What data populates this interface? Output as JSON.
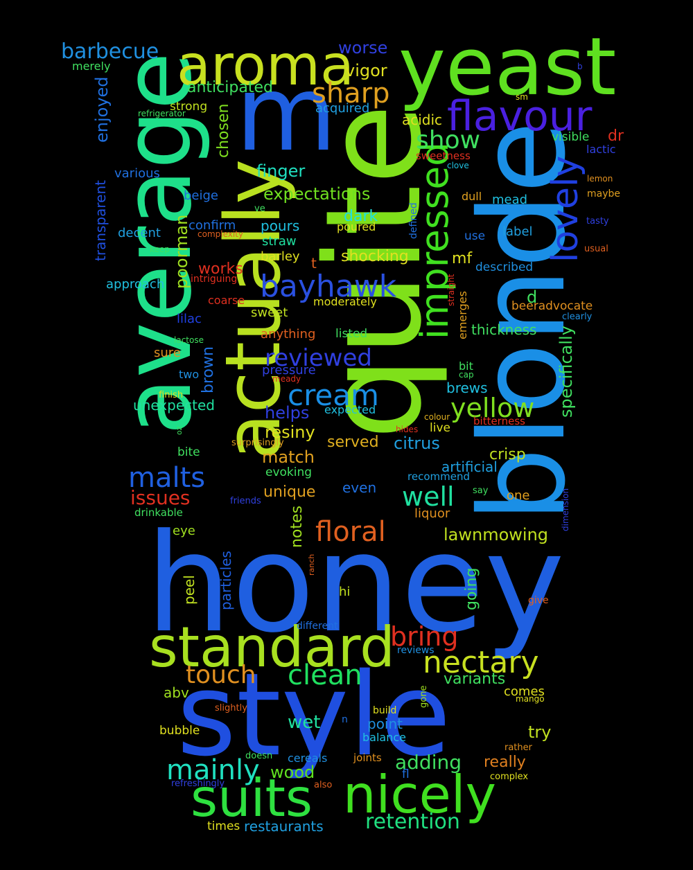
{
  "words": [
    {
      "text": "honey",
      "color": "#1f5fe0",
      "rotate": false
    },
    {
      "text": "quite",
      "color": "#7fe01a",
      "rotate": true
    },
    {
      "text": "blonde",
      "color": "#1a8fe6",
      "rotate": true
    },
    {
      "text": "style",
      "color": "#1f4fe0",
      "rotate": false
    },
    {
      "text": "average",
      "color": "#1ee08a",
      "rotate": true
    },
    {
      "text": "actually",
      "color": "#b8e020",
      "rotate": true
    },
    {
      "text": "yeast",
      "color": "#5fe020",
      "rotate": false
    },
    {
      "text": "m",
      "color": "#1f5fe0",
      "rotate": false
    },
    {
      "text": "aroma",
      "color": "#c8e020",
      "rotate": false
    },
    {
      "text": "standard",
      "color": "#a8e020",
      "rotate": false
    },
    {
      "text": "suits",
      "color": "#2ee040",
      "rotate": false
    },
    {
      "text": "nicely",
      "color": "#40e020",
      "rotate": false
    },
    {
      "text": "flavour",
      "color": "#4a20e0",
      "rotate": false
    },
    {
      "text": "impressed",
      "color": "#40e020",
      "rotate": true
    },
    {
      "text": "lovely",
      "color": "#2040e0",
      "rotate": true
    },
    {
      "text": "bayhawk",
      "color": "#2a50e0",
      "rotate": false
    },
    {
      "text": "nectary",
      "color": "#c8e020",
      "rotate": false
    },
    {
      "text": "cream",
      "color": "#1a8fe6",
      "rotate": false
    },
    {
      "text": "mainly",
      "color": "#20e0c0",
      "rotate": false
    },
    {
      "text": "clean",
      "color": "#20e060",
      "rotate": false
    },
    {
      "text": "floral",
      "color": "#e06020",
      "rotate": false
    },
    {
      "text": "malts",
      "color": "#2060e0",
      "rotate": false
    },
    {
      "text": "sharp",
      "color": "#e0a020",
      "rotate": false
    },
    {
      "text": "yellow",
      "color": "#80e020",
      "rotate": false
    },
    {
      "text": "well",
      "color": "#20e0a0",
      "rotate": false
    },
    {
      "text": "bring",
      "color": "#e03020",
      "rotate": false
    },
    {
      "text": "touch",
      "color": "#e09020",
      "rotate": false
    },
    {
      "text": "show",
      "color": "#40e060",
      "rotate": false
    },
    {
      "text": "barbecue",
      "color": "#2090e0",
      "rotate": false
    },
    {
      "text": "reviewed",
      "color": "#3040e0",
      "rotate": false
    },
    {
      "text": "retention",
      "color": "#20e080",
      "rotate": false
    },
    {
      "text": "adding",
      "color": "#40e060",
      "rotate": false
    },
    {
      "text": "specifically",
      "color": "#40e060",
      "rotate": true
    },
    {
      "text": "restaurants",
      "color": "#20a0e0",
      "rotate": false
    },
    {
      "text": "expectations",
      "color": "#70e020",
      "rotate": false
    },
    {
      "text": "lawnmowing",
      "color": "#c0e020",
      "rotate": false
    },
    {
      "text": "anticipated",
      "color": "#40e060",
      "rotate": false
    },
    {
      "text": "enjoyed",
      "color": "#2070e0",
      "rotate": true
    },
    {
      "text": "transparent",
      "color": "#2050e0",
      "rotate": true
    },
    {
      "text": "poorman",
      "color": "#a0e020",
      "rotate": true
    },
    {
      "text": "chosen",
      "color": "#80e020",
      "rotate": true
    },
    {
      "text": "brown",
      "color": "#2070e0",
      "rotate": true
    },
    {
      "text": "shocking",
      "color": "#e0e020",
      "rotate": false
    },
    {
      "text": "issues",
      "color": "#e03020",
      "rotate": false
    },
    {
      "text": "variants",
      "color": "#40e060",
      "rotate": false
    },
    {
      "text": "citrus",
      "color": "#20a0e0",
      "rotate": false
    },
    {
      "text": "finger",
      "color": "#20e0c0",
      "rotate": false
    },
    {
      "text": "wood",
      "color": "#60e020",
      "rotate": false
    },
    {
      "text": "match",
      "color": "#e0a020",
      "rotate": false
    },
    {
      "text": "resiny",
      "color": "#e0e020",
      "rotate": false
    },
    {
      "text": "vigor",
      "color": "#e0e020",
      "rotate": false
    },
    {
      "text": "worse",
      "color": "#3040e0",
      "rotate": false
    },
    {
      "text": "served",
      "color": "#e0b020",
      "rotate": false
    },
    {
      "text": "helps",
      "color": "#3040e0",
      "rotate": false
    },
    {
      "text": "unique",
      "color": "#e0a020",
      "rotate": false
    },
    {
      "text": "dark",
      "color": "#20e0e0",
      "rotate": false
    },
    {
      "text": "crisp",
      "color": "#c0e020",
      "rotate": false
    },
    {
      "text": "try",
      "color": "#c0e020",
      "rotate": false
    },
    {
      "text": "really",
      "color": "#e08020",
      "rotate": false
    },
    {
      "text": "wet",
      "color": "#20e0a0",
      "rotate": false
    },
    {
      "text": "notes",
      "color": "#a0e020",
      "rotate": true
    },
    {
      "text": "going",
      "color": "#40e060",
      "rotate": true
    },
    {
      "text": "artificial",
      "color": "#20a0e0",
      "rotate": false
    },
    {
      "text": "thickness",
      "color": "#40e060",
      "rotate": false
    },
    {
      "text": "beeradvocate",
      "color": "#e09020",
      "rotate": false
    },
    {
      "text": "acquired",
      "color": "#20a0e0",
      "rotate": false
    },
    {
      "text": "acidic",
      "color": "#e0e020",
      "rotate": false
    },
    {
      "text": "strong",
      "color": "#c0e020",
      "rotate": false
    },
    {
      "text": "various",
      "color": "#2070e0",
      "rotate": false
    },
    {
      "text": "decent",
      "color": "#20a0e0",
      "rotate": false
    },
    {
      "text": "approach",
      "color": "#20c0e0",
      "rotate": false
    },
    {
      "text": "confirm",
      "color": "#2070e0",
      "rotate": false
    },
    {
      "text": "pours",
      "color": "#20c0e0",
      "rotate": false
    },
    {
      "text": "straw",
      "color": "#20e0a0",
      "rotate": false
    },
    {
      "text": "barley",
      "color": "#e0e020",
      "rotate": false
    },
    {
      "text": "works",
      "color": "#e03020",
      "rotate": false
    },
    {
      "text": "moderately",
      "color": "#e0e020",
      "rotate": false
    },
    {
      "text": "sweet",
      "color": "#c0e020",
      "rotate": false
    },
    {
      "text": "anything",
      "color": "#e06020",
      "rotate": false
    },
    {
      "text": "listed",
      "color": "#40e060",
      "rotate": false
    },
    {
      "text": "pressure",
      "color": "#3040e0",
      "rotate": false
    },
    {
      "text": "expected",
      "color": "#20c0e0",
      "rotate": false
    },
    {
      "text": "brews",
      "color": "#20c0e0",
      "rotate": false
    },
    {
      "text": "unexpected",
      "color": "#20e0a0",
      "rotate": false
    },
    {
      "text": "sure",
      "color": "#e09020",
      "rotate": false
    },
    {
      "text": "two",
      "color": "#2090e0",
      "rotate": false
    },
    {
      "text": "lilac",
      "color": "#2040e0",
      "rotate": false
    },
    {
      "text": "beige",
      "color": "#2070e0",
      "rotate": false
    },
    {
      "text": "merely",
      "color": "#40e060",
      "rotate": false
    },
    {
      "text": "visible",
      "color": "#40e060",
      "rotate": false
    },
    {
      "text": "lactic",
      "color": "#3040e0",
      "rotate": false
    },
    {
      "text": "sweetness",
      "color": "#e03020",
      "rotate": false
    },
    {
      "text": "clove",
      "color": "#20c0e0",
      "rotate": false
    },
    {
      "text": "mead",
      "color": "#20c0e0",
      "rotate": false
    },
    {
      "text": "dull",
      "color": "#e0a020",
      "rotate": false
    },
    {
      "text": "label",
      "color": "#20a0e0",
      "rotate": false
    },
    {
      "text": "use",
      "color": "#2070e0",
      "rotate": false
    },
    {
      "text": "described",
      "color": "#2090e0",
      "rotate": false
    },
    {
      "text": "poured",
      "color": "#e0e020",
      "rotate": false
    },
    {
      "text": "mf",
      "color": "#e0e020",
      "rotate": false
    },
    {
      "text": "d",
      "color": "#40e060",
      "rotate": false
    },
    {
      "text": "t",
      "color": "#e06020",
      "rotate": false
    },
    {
      "text": "dr",
      "color": "#e03020",
      "rotate": false
    },
    {
      "text": "one",
      "color": "#e0a020",
      "rotate": false
    },
    {
      "text": "even",
      "color": "#2070e0",
      "rotate": false
    },
    {
      "text": "evoking",
      "color": "#40e060",
      "rotate": false
    },
    {
      "text": "recommend",
      "color": "#20a0e0",
      "rotate": false
    },
    {
      "text": "liquor",
      "color": "#e09020",
      "rotate": false
    },
    {
      "text": "live",
      "color": "#e0e020",
      "rotate": false
    },
    {
      "text": "bitterness",
      "color": "#e03020",
      "rotate": false
    },
    {
      "text": "colour",
      "color": "#e0b020",
      "rotate": false
    },
    {
      "text": "bit",
      "color": "#40e060",
      "rotate": false
    },
    {
      "text": "cap",
      "color": "#40e060",
      "rotate": false
    },
    {
      "text": "comes",
      "color": "#e0e020",
      "rotate": false
    },
    {
      "text": "point",
      "color": "#2090e0",
      "rotate": false
    },
    {
      "text": "balance",
      "color": "#20c0e0",
      "rotate": false
    },
    {
      "text": "build",
      "color": "#e0e020",
      "rotate": false
    },
    {
      "text": "joints",
      "color": "#e09020",
      "rotate": false
    },
    {
      "text": "cereals",
      "color": "#2090e0",
      "rotate": false
    },
    {
      "text": "abv",
      "color": "#a0e020",
      "rotate": false
    },
    {
      "text": "bubble",
      "color": "#e0e020",
      "rotate": false
    },
    {
      "text": "eye",
      "color": "#a0e020",
      "rotate": false
    },
    {
      "text": "peel",
      "color": "#c0e020",
      "rotate": true
    },
    {
      "text": "particles",
      "color": "#2060e0",
      "rotate": true
    },
    {
      "text": "hi",
      "color": "#c0e020",
      "rotate": false
    },
    {
      "text": "different",
      "color": "#2070e0",
      "rotate": false
    },
    {
      "text": "reviews",
      "color": "#2090e0",
      "rotate": false
    },
    {
      "text": "times",
      "color": "#e0e020",
      "rotate": false
    },
    {
      "text": "drinkable",
      "color": "#40e060",
      "rotate": false
    },
    {
      "text": "bite",
      "color": "#40e060",
      "rotate": false
    },
    {
      "text": "finish",
      "color": "#e0e020",
      "rotate": false
    },
    {
      "text": "refrigerator",
      "color": "#40e060",
      "rotate": false
    },
    {
      "text": "complexity",
      "color": "#e06020",
      "rotate": false
    },
    {
      "text": "intriguing",
      "color": "#e03020",
      "rotate": false
    },
    {
      "text": "coarse",
      "color": "#e03020",
      "rotate": false
    },
    {
      "text": "lactose",
      "color": "#40e060",
      "rotate": false
    },
    {
      "text": "meady",
      "color": "#e03020",
      "rotate": false
    },
    {
      "text": "keep",
      "color": "#40e060",
      "rotate": false
    },
    {
      "text": "ve",
      "color": "#40e060",
      "rotate": false
    },
    {
      "text": "oz",
      "color": "#40e060",
      "rotate": true
    },
    {
      "text": "friends",
      "color": "#3040e0",
      "rotate": false
    },
    {
      "text": "surprisingly",
      "color": "#e0a020",
      "rotate": false
    },
    {
      "text": "hides",
      "color": "#e03020",
      "rotate": false
    },
    {
      "text": "defined",
      "color": "#2070e0",
      "rotate": true
    },
    {
      "text": "straight",
      "color": "#e03020",
      "rotate": true
    },
    {
      "text": "emerges",
      "color": "#e0a020",
      "rotate": true
    },
    {
      "text": "lemon",
      "color": "#e09020",
      "rotate": false
    },
    {
      "text": "maybe",
      "color": "#e0a020",
      "rotate": false
    },
    {
      "text": "tasty",
      "color": "#3040e0",
      "rotate": false
    },
    {
      "text": "usual",
      "color": "#e06020",
      "rotate": false
    },
    {
      "text": "clearly",
      "color": "#2090e0",
      "rotate": false
    },
    {
      "text": "say",
      "color": "#40e060",
      "rotate": false
    },
    {
      "text": "dimension",
      "color": "#3040e0",
      "rotate": true
    },
    {
      "text": "give",
      "color": "#e06020",
      "rotate": false
    },
    {
      "text": "ranch",
      "color": "#e06020",
      "rotate": true
    },
    {
      "text": "gone",
      "color": "#a0e020",
      "rotate": true
    },
    {
      "text": "n",
      "color": "#2070e0",
      "rotate": false
    },
    {
      "text": "slightly",
      "color": "#e06020",
      "rotate": false
    },
    {
      "text": "doesn",
      "color": "#40e060",
      "rotate": false
    },
    {
      "text": "refreshingly",
      "color": "#3040e0",
      "rotate": false
    },
    {
      "text": "also",
      "color": "#e06020",
      "rotate": false
    },
    {
      "text": "fl",
      "color": "#2070e0",
      "rotate": false
    },
    {
      "text": "complex",
      "color": "#e0e020",
      "rotate": false
    },
    {
      "text": "rather",
      "color": "#e09020",
      "rotate": false
    },
    {
      "text": "mango",
      "color": "#e0e020",
      "rotate": false
    },
    {
      "text": "sm",
      "color": "#e0e020",
      "rotate": false
    },
    {
      "text": "b",
      "color": "#3040e0",
      "rotate": false
    }
  ]
}
